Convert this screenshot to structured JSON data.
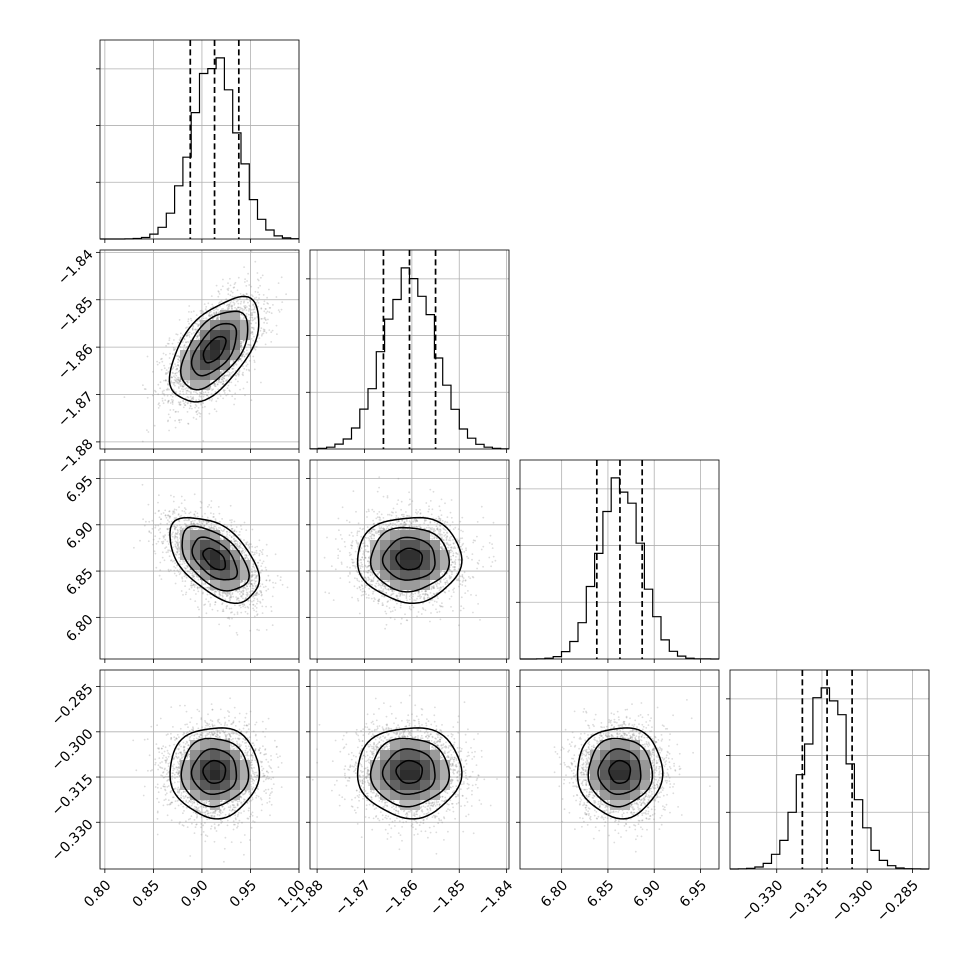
{
  "chart_data": {
    "type": "corner",
    "n_params": 4,
    "grid": true,
    "parameters": [
      {
        "mean": 0.913,
        "std": 0.023,
        "range": [
          0.795,
          1.0
        ],
        "ticks": [
          0.8,
          0.85,
          0.9,
          0.95,
          1.0
        ],
        "tick_labels": [
          "0.80",
          "0.85",
          "0.90",
          "0.95",
          "1.00"
        ],
        "quantiles": [
          0.888,
          0.913,
          0.938
        ]
      },
      {
        "mean": -1.8605,
        "std": 0.0055,
        "range": [
          -1.8815,
          -1.8395
        ],
        "ticks": [
          -1.88,
          -1.87,
          -1.86,
          -1.85,
          -1.84
        ],
        "tick_labels": [
          "−1.88",
          "−1.87",
          "−1.86",
          "−1.85",
          "−1.84"
        ],
        "quantiles": [
          -1.866,
          -1.8605,
          -1.855
        ]
      },
      {
        "mean": 6.863,
        "std": 0.023,
        "range": [
          6.755,
          6.97
        ],
        "ticks": [
          6.8,
          6.85,
          6.9,
          6.95
        ],
        "tick_labels": [
          "6.80",
          "6.85",
          "6.90",
          "6.95"
        ],
        "quantiles": [
          6.838,
          6.863,
          6.887
        ]
      },
      {
        "mean": -0.3133,
        "std": 0.0075,
        "range": [
          -0.3455,
          -0.2795
        ],
        "ticks": [
          -0.33,
          -0.315,
          -0.3,
          -0.285
        ],
        "tick_labels": [
          "−0.330",
          "−0.315",
          "−0.300",
          "−0.285"
        ],
        "quantiles": [
          -0.3215,
          -0.3133,
          -0.305
        ]
      }
    ],
    "correlations": {
      "1-0": 0.55,
      "2-0": -0.5,
      "2-1": 0.0,
      "3-0": 0.0,
      "3-1": 0.0,
      "3-2": 0.0
    },
    "colors": {
      "points": "#808080",
      "lines": "#000000",
      "grid": "#b0b0b0"
    }
  }
}
